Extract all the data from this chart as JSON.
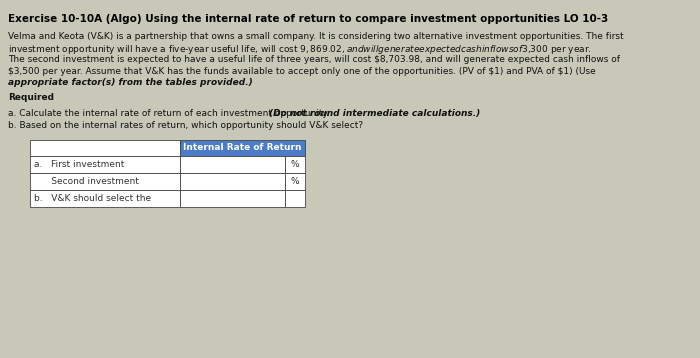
{
  "title": "Exercise 10-10A (Algo) Using the internal rate of return to compare investment opportunities LO 10-3",
  "body_line1": "Velma and Keota (V&K) is a partnership that owns a small company. It is considering two alternative investment opportunities. The first",
  "body_line2": "investment opportunity will have a five-year useful life, will cost $9,869.02, and will generate expected cash inflows of $3,300 per year.",
  "body_line3": "The second investment is expected to have a useful life of three years, will cost $8,703.98, and will generate expected cash inflows of",
  "body_line4": "$3,500 per year. Assume that V&K has the funds available to accept only one of the opportunities. (PV of $1) and PVA of $1) (Use",
  "body_line5_normal": "$3,500 per year. Assume that V&K has the funds available to accept only one of the opportunities. (",
  "body_line5_link1": "PV of $1",
  "body_line5_mid": ") and ",
  "body_line5_link2": "PVA of $1",
  "body_line5_end": ") (Use",
  "body_line6_bold": "appropriate factor(s) from the tables provided.)",
  "required_label": "Required",
  "req_a_normal": "a. Calculate the internal rate of return of each investment opportunity. ",
  "req_a_bold": "(Do not round intermediate calculations.)",
  "req_b": "b. Based on the internal rates of return, which opportunity should V&K select?",
  "table_header": "Internal Rate of Return",
  "row_a_label": "a.   First investment",
  "row_b_label": "      Second investment",
  "row_c_label": "b.   V&K should select the",
  "percent_sign": "%",
  "bg_color": "#c8c8b8",
  "table_bg": "#ffffff",
  "header_bg": "#4a7cc7",
  "header_text_color": "#ffffff",
  "border_color": "#444444",
  "title_color": "#000000",
  "body_color": "#111111",
  "red_color": "#880000"
}
